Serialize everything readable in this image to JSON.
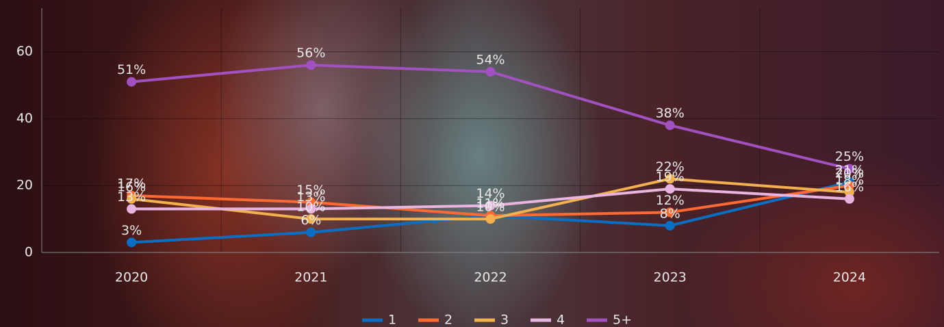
{
  "chart_data": {
    "type": "line",
    "categories": [
      "2020",
      "2021",
      "2022",
      "2023",
      "2024"
    ],
    "series": [
      {
        "name": "1",
        "color": "#0a6fc2",
        "values": [
          3,
          6,
          11,
          8,
          21
        ],
        "value_labels": [
          "3%",
          "6%",
          "11%",
          "8%",
          "21%"
        ]
      },
      {
        "name": "2",
        "color": "#ff6a33",
        "values": [
          17,
          15,
          11,
          12,
          20
        ],
        "value_labels": [
          "17%",
          "15%",
          "11%",
          "12%",
          "20%"
        ]
      },
      {
        "name": "3",
        "color": "#f2b04e",
        "values": [
          16,
          10,
          10,
          22,
          18
        ],
        "value_labels": [
          "16%",
          "10%",
          "10%",
          "22%",
          "18%"
        ]
      },
      {
        "name": "4",
        "color": "#e8b4e0",
        "values": [
          13,
          13,
          14,
          19,
          16
        ],
        "value_labels": [
          "13%",
          "13%",
          "14%",
          "19%",
          "16%"
        ]
      },
      {
        "name": "5+",
        "color": "#a251c0",
        "values": [
          51,
          56,
          54,
          38,
          25
        ],
        "value_labels": [
          "51%",
          "56%",
          "54%",
          "38%",
          "25%"
        ]
      }
    ],
    "ylim": [
      0,
      73
    ],
    "yticks": [
      0,
      20,
      40,
      60
    ],
    "grid": true,
    "legend": "bottom"
  }
}
